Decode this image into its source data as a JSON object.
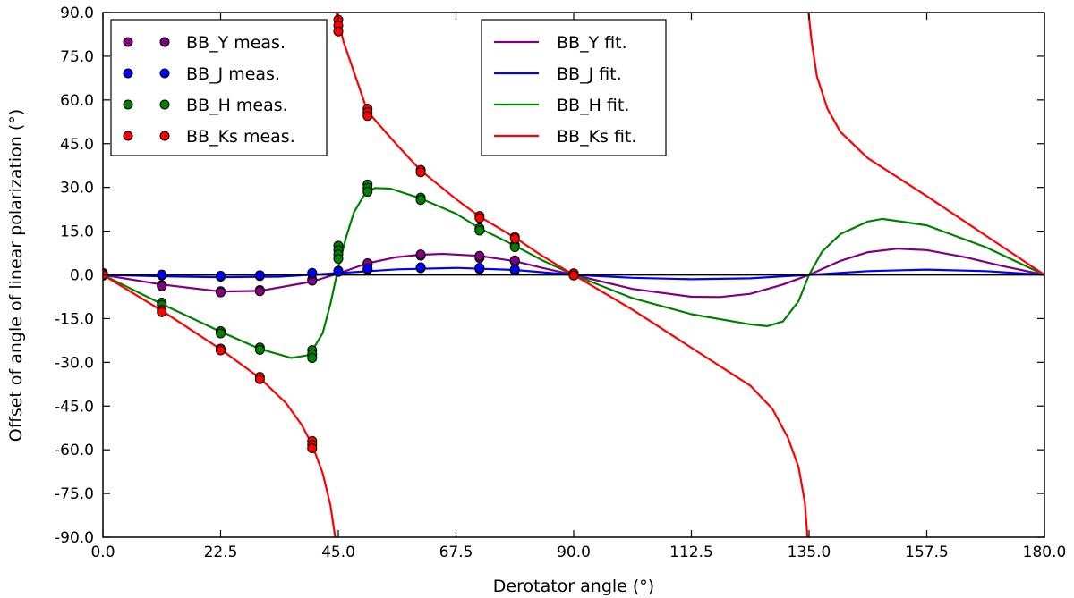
{
  "chart_data": {
    "type": "scatter",
    "title": "",
    "xlabel": "Derotator angle (°)",
    "ylabel": "Offset of angle of linear polarization (°)",
    "xlim": [
      0,
      180
    ],
    "ylim": [
      -90,
      90
    ],
    "xticks": [
      0,
      22.5,
      45,
      67.5,
      90,
      112.5,
      135,
      157.5,
      180
    ],
    "xtick_labels": [
      "0.0",
      "22.5",
      "45.0",
      "67.5",
      "90.0",
      "112.5",
      "135.0",
      "157.5",
      "180.0"
    ],
    "yticks": [
      90,
      75,
      60,
      45,
      30,
      15,
      0,
      -15,
      -30,
      -45,
      -60,
      -75,
      -90
    ],
    "ytick_labels": [
      "90.0",
      "75.0",
      "60.0",
      "45.0",
      "30.0",
      "15.0",
      "0.0",
      "-15.0",
      "-30.0",
      "-45.0",
      "-60.0",
      "-75.0",
      "-90.0"
    ],
    "grid": false,
    "zero_line": true,
    "legend_measured": {
      "placement": "upper-left",
      "entries": [
        "BB_Y meas.",
        "BB_J meas.",
        "BB_H meas.",
        "BB_Ks meas."
      ]
    },
    "legend_fit": {
      "placement": "upper-center",
      "entries": [
        "BB_Y fit.",
        "BB_J fit.",
        "BB_H fit.",
        "BB_Ks fit."
      ]
    },
    "series": [
      {
        "name": "BB_Y",
        "color": "#800080",
        "measured": [
          [
            0,
            0.5
          ],
          [
            0,
            -0.3
          ],
          [
            11.25,
            -3.5
          ],
          [
            11.25,
            -3.9
          ],
          [
            22.5,
            -5.6
          ],
          [
            22.5,
            -6.0
          ],
          [
            30,
            -5.2
          ],
          [
            30,
            -5.6
          ],
          [
            40,
            -1.6
          ],
          [
            40,
            -2.0
          ],
          [
            45,
            1.0
          ],
          [
            45,
            1.4
          ],
          [
            50.6,
            3.6
          ],
          [
            50.6,
            4.0
          ],
          [
            60.75,
            6.6
          ],
          [
            60.75,
            7.0
          ],
          [
            72,
            5.8
          ],
          [
            72,
            6.5
          ],
          [
            78.75,
            4.6
          ],
          [
            78.75,
            5.0
          ],
          [
            90,
            0.5
          ],
          [
            90,
            -0.2
          ]
        ],
        "fit": [
          [
            0,
            0
          ],
          [
            11.25,
            -3.3
          ],
          [
            22.5,
            -5.7
          ],
          [
            30,
            -5.5
          ],
          [
            40,
            -2.3
          ],
          [
            45,
            0.5
          ],
          [
            50.6,
            4.0
          ],
          [
            56.25,
            6.1
          ],
          [
            60.75,
            6.9
          ],
          [
            65,
            7.2
          ],
          [
            72,
            6.5
          ],
          [
            78.75,
            4.7
          ],
          [
            84,
            2.4
          ],
          [
            90,
            0
          ],
          [
            101.25,
            -4.8
          ],
          [
            112.5,
            -7.5
          ],
          [
            118,
            -7.6
          ],
          [
            123.75,
            -6.5
          ],
          [
            130,
            -3.3
          ],
          [
            135,
            0
          ],
          [
            141,
            4.8
          ],
          [
            146.25,
            7.8
          ],
          [
            151.9,
            9.0
          ],
          [
            157.5,
            8.5
          ],
          [
            165,
            6.0
          ],
          [
            172,
            3.0
          ],
          [
            180,
            0
          ]
        ]
      },
      {
        "name": "BB_J",
        "color": "#0000ff",
        "measured": [
          [
            0,
            0.6
          ],
          [
            0,
            0.2
          ],
          [
            11.25,
            -0.2
          ],
          [
            11.25,
            0.1
          ],
          [
            22.5,
            -0.6
          ],
          [
            22.5,
            -0.3
          ],
          [
            30,
            -0.4
          ],
          [
            30,
            -0.1
          ],
          [
            40,
            0.4
          ],
          [
            40,
            0.7
          ],
          [
            45,
            1.2
          ],
          [
            50.6,
            1.9
          ],
          [
            50.6,
            2.2
          ],
          [
            60.75,
            2.3
          ],
          [
            60.75,
            2.6
          ],
          [
            72,
            2.0
          ],
          [
            72,
            2.4
          ],
          [
            78.75,
            1.5
          ],
          [
            78.75,
            1.9
          ],
          [
            90,
            0.4
          ],
          [
            90,
            0.1
          ]
        ],
        "fit": [
          [
            0,
            0
          ],
          [
            11.25,
            -0.5
          ],
          [
            22.5,
            -0.8
          ],
          [
            33.75,
            -0.6
          ],
          [
            45,
            0.6
          ],
          [
            56.25,
            1.9
          ],
          [
            67.5,
            2.4
          ],
          [
            78.75,
            1.7
          ],
          [
            90,
            0
          ],
          [
            101.25,
            -1.0
          ],
          [
            112.5,
            -1.5
          ],
          [
            123.75,
            -1.2
          ],
          [
            135,
            0
          ],
          [
            146.25,
            1.3
          ],
          [
            157.5,
            1.8
          ],
          [
            168.75,
            1.3
          ],
          [
            180,
            0
          ]
        ]
      },
      {
        "name": "BB_H",
        "color": "#008000",
        "measured": [
          [
            0,
            0.6
          ],
          [
            0,
            0.1
          ],
          [
            11.25,
            -9.5
          ],
          [
            11.25,
            -10.3
          ],
          [
            22.5,
            -19.3
          ],
          [
            22.5,
            -20.1
          ],
          [
            30,
            -24.9
          ],
          [
            30,
            -25.7
          ],
          [
            40,
            -25.8
          ],
          [
            40,
            -27.2
          ],
          [
            40,
            -28.5
          ],
          [
            45,
            10.0
          ],
          [
            45,
            8.5
          ],
          [
            45,
            7.0
          ],
          [
            45,
            5.5
          ],
          [
            50.6,
            31.0
          ],
          [
            50.6,
            29.8
          ],
          [
            50.6,
            28.5
          ],
          [
            60.75,
            26.5
          ],
          [
            60.75,
            25.7
          ],
          [
            72,
            16.0
          ],
          [
            72,
            15.2
          ],
          [
            78.75,
            10.2
          ],
          [
            78.75,
            9.5
          ],
          [
            90,
            0.5
          ],
          [
            90,
            -0.2
          ]
        ],
        "fit": [
          [
            0,
            0
          ],
          [
            11.25,
            -10.0
          ],
          [
            22.5,
            -19.5
          ],
          [
            30,
            -25.4
          ],
          [
            36,
            -28.5
          ],
          [
            39.5,
            -27.5
          ],
          [
            42,
            -20.0
          ],
          [
            43.5,
            -10.0
          ],
          [
            45,
            2.5
          ],
          [
            46.5,
            13.0
          ],
          [
            48,
            21.5
          ],
          [
            50,
            27.5
          ],
          [
            52,
            29.8
          ],
          [
            55,
            29.6
          ],
          [
            60.75,
            26.2
          ],
          [
            67.5,
            21.0
          ],
          [
            72,
            16.0
          ],
          [
            78.75,
            10.0
          ],
          [
            84,
            5.0
          ],
          [
            90,
            0
          ],
          [
            101.25,
            -8.0
          ],
          [
            112.5,
            -13.5
          ],
          [
            123.75,
            -17.0
          ],
          [
            127,
            -17.6
          ],
          [
            130,
            -16.0
          ],
          [
            133,
            -9.0
          ],
          [
            135,
            0
          ],
          [
            137.5,
            8.0
          ],
          [
            141,
            14.0
          ],
          [
            146.25,
            18.3
          ],
          [
            149,
            19.2
          ],
          [
            157.5,
            17.0
          ],
          [
            168.75,
            9.5
          ],
          [
            180,
            0
          ]
        ]
      },
      {
        "name": "BB_Ks",
        "color": "#ff0000",
        "measured": [
          [
            0,
            0.5
          ],
          [
            0,
            0
          ],
          [
            11.25,
            -12.0
          ],
          [
            11.25,
            -12.8
          ],
          [
            22.5,
            -25.3
          ],
          [
            22.5,
            -25.9
          ],
          [
            30,
            -35.0
          ],
          [
            30,
            -35.8
          ],
          [
            40,
            -57.0
          ],
          [
            40,
            -58.3
          ],
          [
            40,
            -59.5
          ],
          [
            45,
            87.5
          ],
          [
            45,
            85.5
          ],
          [
            45,
            83.5
          ],
          [
            50.6,
            57.0
          ],
          [
            50.6,
            55.8
          ],
          [
            50.6,
            54.5
          ],
          [
            60.75,
            36.0
          ],
          [
            60.75,
            35.2
          ],
          [
            72,
            20.2
          ],
          [
            72,
            19.5
          ],
          [
            78.75,
            13.0
          ],
          [
            78.75,
            12.4
          ],
          [
            90,
            0.5
          ],
          [
            90,
            -0.2
          ]
        ],
        "fit": [
          [
            0,
            0
          ],
          [
            11.25,
            -12.3
          ],
          [
            22.5,
            -25.5
          ],
          [
            30,
            -35.4
          ],
          [
            35,
            -44.0
          ],
          [
            38,
            -51.5
          ],
          [
            40,
            -58.3
          ],
          [
            42,
            -68.0
          ],
          [
            43.5,
            -79.0
          ],
          [
            44.4,
            -90.0
          ],
          [
            44.6,
            90.0
          ],
          [
            46,
            80.0
          ],
          [
            50.6,
            56.0
          ],
          [
            56.25,
            44.5
          ],
          [
            60.75,
            35.8
          ],
          [
            67.5,
            26.0
          ],
          [
            72,
            20.0
          ],
          [
            78.75,
            12.8
          ],
          [
            84,
            6.5
          ],
          [
            90,
            0
          ],
          [
            101.25,
            -12.0
          ],
          [
            112.5,
            -25.0
          ],
          [
            123.75,
            -38.0
          ],
          [
            128,
            -46.0
          ],
          [
            131,
            -56.0
          ],
          [
            133,
            -66.0
          ],
          [
            134.2,
            -78.0
          ],
          [
            134.7,
            -90.0
          ],
          [
            134.9,
            90.0
          ],
          [
            135.5,
            80.0
          ],
          [
            136.5,
            68.0
          ],
          [
            138.5,
            57.0
          ],
          [
            141,
            49.0
          ],
          [
            146.25,
            40.0
          ],
          [
            157.5,
            27.0
          ],
          [
            168.75,
            13.5
          ],
          [
            180,
            0
          ]
        ]
      }
    ]
  }
}
